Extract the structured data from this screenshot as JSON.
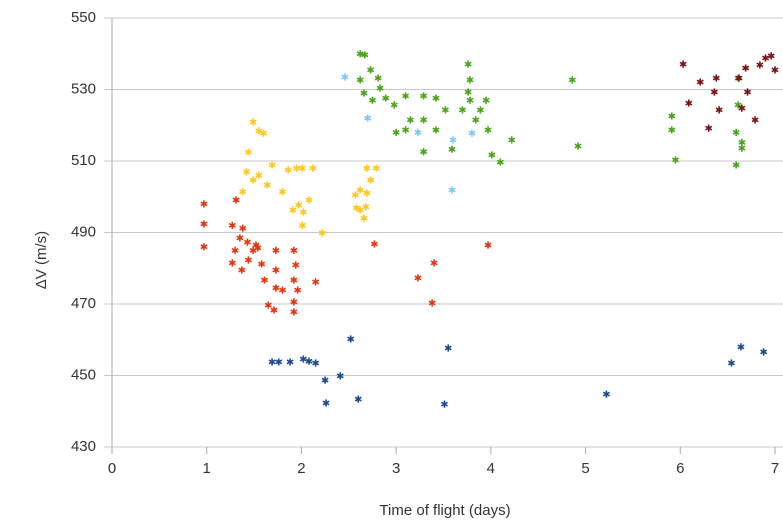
{
  "chart_data": {
    "type": "scatter",
    "xlabel": "Time of flight (days)",
    "ylabel": "ΔV (m/s)",
    "xlim": [
      0,
      7
    ],
    "ylim": [
      430,
      550
    ],
    "xticks": [
      0,
      1,
      2,
      3,
      4,
      5,
      6,
      7
    ],
    "yticks": [
      430,
      450,
      470,
      490,
      510,
      530,
      550
    ],
    "grid": true,
    "series": [
      {
        "color": "#e8340e",
        "x": [
          0.97,
          0.97,
          0.97,
          1.27,
          1.27,
          1.3,
          1.35,
          1.38,
          1.43,
          1.37,
          1.44,
          1.49,
          1.54,
          1.58,
          1.61,
          1.65,
          1.71,
          1.73,
          1.73,
          1.73,
          1.8,
          1.92,
          1.92,
          1.92,
          1.92,
          1.96,
          1.94,
          2.15,
          2.77,
          3.23,
          3.4,
          3.38,
          3.97,
          1.31,
          1.52
        ],
        "values": [
          498,
          492.4,
          486,
          492,
          481.5,
          485,
          488.5,
          491.2,
          487.3,
          479.5,
          482.3,
          485,
          485.7,
          481.2,
          476.7,
          469.7,
          468.3,
          474.5,
          479.5,
          485,
          473.9,
          485,
          476.7,
          470.6,
          467.8,
          473.9,
          480.9,
          476.2,
          486.8,
          477.3,
          481.5,
          470.3,
          486.5,
          499.1,
          486.5
        ]
      },
      {
        "color": "#ffc61f",
        "x": [
          1.49,
          1.55,
          1.44,
          1.42,
          1.6,
          1.49,
          1.55,
          1.64,
          1.38,
          1.69,
          1.8,
          1.86,
          1.95,
          2.01,
          2.12,
          1.91,
          1.97,
          2.02,
          2.08,
          2.01,
          2.22,
          2.57,
          2.62,
          2.58,
          2.66,
          2.69,
          2.79,
          2.73,
          2.69,
          2.62,
          2.68
        ],
        "values": [
          520.9,
          518.4,
          512.5,
          507,
          517.8,
          504.7,
          506,
          503.3,
          501.4,
          508.9,
          501.4,
          507.5,
          508,
          508,
          508,
          496.3,
          497.7,
          495.7,
          499.1,
          492,
          489.9,
          500.5,
          501.9,
          496.9,
          494,
          508,
          508,
          504.7,
          501,
          496.3,
          497.2
        ]
      },
      {
        "color": "#4aa31c",
        "x": [
          2.62,
          2.67,
          2.62,
          2.73,
          2.81,
          2.66,
          2.75,
          2.83,
          2.89,
          2.98,
          3.1,
          3.15,
          3.1,
          3.0,
          3.29,
          3.29,
          3.29,
          3.42,
          3.42,
          3.52,
          3.59,
          3.7,
          3.76,
          3.78,
          3.76,
          3.78,
          3.84,
          3.89,
          3.95,
          3.97,
          4.01,
          4.1,
          4.22,
          4.86,
          4.92,
          5.91,
          5.91,
          5.95,
          6.61,
          6.61,
          6.59,
          6.65,
          6.59,
          6.65
        ],
        "values": [
          540,
          539.7,
          532.7,
          535.5,
          533.2,
          529,
          527,
          530.4,
          527.6,
          525.7,
          528.2,
          521.5,
          518.7,
          518,
          528.2,
          521.5,
          512.6,
          527.6,
          518.7,
          524.3,
          513.3,
          524.3,
          537.1,
          532.7,
          529.3,
          527,
          521.5,
          524.3,
          527,
          518.7,
          511.7,
          509.7,
          515.9,
          532.7,
          514.2,
          522.6,
          518.7,
          510.3,
          533.2,
          525.7,
          518,
          513.6,
          508.9,
          515.2
        ]
      },
      {
        "color": "#7ec8f7",
        "x": [
          2.46,
          2.7,
          3.23,
          3.59,
          3.6,
          3.8
        ],
        "values": [
          533.5,
          522,
          518,
          501.9,
          515.9,
          517.8
        ]
      },
      {
        "color": "#1b4a8a",
        "x": [
          1.69,
          1.76,
          1.88,
          2.02,
          2.08,
          2.15,
          2.25,
          2.26,
          2.41,
          2.52,
          2.6,
          3.55,
          3.51,
          5.22,
          6.54,
          6.64,
          6.88
        ],
        "values": [
          453.8,
          453.8,
          453.8,
          454.6,
          454,
          453.5,
          448.7,
          442.3,
          449.9,
          460.2,
          443.4,
          457.7,
          442,
          444.8,
          453.5,
          458,
          456.6
        ]
      },
      {
        "color": "#7b1010",
        "x": [
          6.03,
          6.09,
          6.21,
          6.36,
          6.38,
          6.3,
          6.41,
          6.62,
          6.69,
          6.71,
          6.65,
          6.84,
          6.9,
          6.96,
          7.0,
          6.79
        ],
        "values": [
          537.1,
          526.2,
          532.1,
          529.3,
          533.2,
          519.2,
          524.3,
          533.2,
          536,
          529.3,
          524.8,
          536.9,
          538.8,
          539.4,
          535.5,
          521.5
        ]
      }
    ]
  }
}
